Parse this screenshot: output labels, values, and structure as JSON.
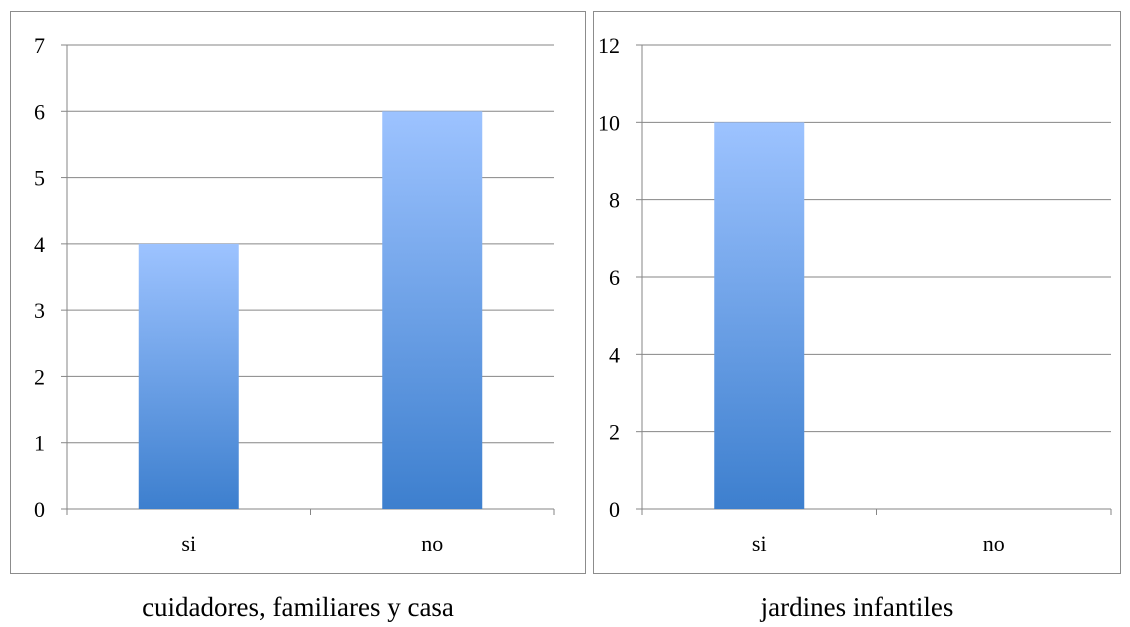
{
  "chart_data": [
    {
      "type": "bar",
      "categories": [
        "si",
        "no"
      ],
      "values": [
        4,
        6
      ],
      "ylim": [
        0,
        7
      ],
      "yticks": [
        0,
        1,
        2,
        3,
        4,
        5,
        6,
        7
      ],
      "grid": true,
      "caption": "cuidadores, familiares y casa"
    },
    {
      "type": "bar",
      "categories": [
        "si",
        "no"
      ],
      "values": [
        10,
        0
      ],
      "ylim": [
        0,
        12
      ],
      "yticks": [
        0,
        2,
        4,
        6,
        8,
        10,
        12
      ],
      "grid": true,
      "caption": "jardines infantiles"
    }
  ],
  "colors": {
    "bar_top": "#9dc3ff",
    "bar_bottom": "#3d7fce",
    "gridline": "#868686",
    "axis": "#868686"
  }
}
